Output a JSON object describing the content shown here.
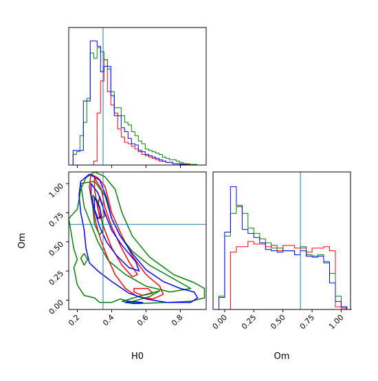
{
  "chart_data": [
    {
      "type": "histogram",
      "panel": "H0 marginal",
      "xlim": [
        0.15,
        0.95
      ],
      "bins": [
        0.165,
        0.185,
        0.205,
        0.225,
        0.245,
        0.265,
        0.285,
        0.305,
        0.325,
        0.345,
        0.365,
        0.385,
        0.405,
        0.425,
        0.445,
        0.465,
        0.485,
        0.505,
        0.525,
        0.545,
        0.565,
        0.585,
        0.605,
        0.625,
        0.645,
        0.665,
        0.685,
        0.705,
        0.725,
        0.745,
        0.765,
        0.785,
        0.805,
        0.825,
        0.845,
        0.865,
        0.885,
        0.905
      ],
      "truth_x": 0.35,
      "series": [
        {
          "color": "#ff0000",
          "values": [
            0,
            0,
            0,
            0,
            0,
            0,
            0,
            0.03,
            0.39,
            0.63,
            0.79,
            0.55,
            0.45,
            0.39,
            0.27,
            0.21,
            0.17,
            0.16,
            0.14,
            0.12,
            0.1,
            0.08,
            0.07,
            0.06,
            0.05,
            0.04,
            0.03,
            0.03,
            0.02,
            0.02,
            0.01,
            0.01,
            0.01,
            0.01,
            0.005,
            0.005,
            0,
            0
          ]
        },
        {
          "color": "#008000",
          "values": [
            0,
            0.08,
            0.1,
            0.22,
            0.32,
            0.5,
            0.84,
            0.8,
            0.88,
            0.85,
            0.79,
            0.72,
            0.55,
            0.43,
            0.43,
            0.37,
            0.32,
            0.3,
            0.25,
            0.22,
            0.18,
            0.16,
            0.12,
            0.11,
            0.1,
            0.09,
            0.08,
            0.06,
            0.05,
            0.04,
            0.04,
            0.03,
            0.02,
            0.01,
            0.01,
            0.005,
            0.005,
            0
          ]
        },
        {
          "color": "#0000ff",
          "values": [
            0,
            0.11,
            0.11,
            0.11,
            0.48,
            0.48,
            0.93,
            0.93,
            0.89,
            0.7,
            0.74,
            0.74,
            0.52,
            0.37,
            0.37,
            0.28,
            0.25,
            0.2,
            0.16,
            0.15,
            0.11,
            0.1,
            0.08,
            0.07,
            0.06,
            0.05,
            0.04,
            0.03,
            0.02,
            0.02,
            0.01,
            0.01,
            0.005,
            0.005,
            0,
            0,
            0,
            0
          ]
        }
      ]
    },
    {
      "type": "contour",
      "panel": "Om vs H0",
      "xlabel": "H0",
      "ylabel": "Om",
      "xlim": [
        0.15,
        0.95
      ],
      "ylim": [
        -0.08,
        1.1
      ],
      "xticks": [
        "0.2",
        "0.4",
        "0.6",
        "0.8"
      ],
      "yticks": [
        "0.00",
        "0.25",
        "0.50",
        "0.75",
        "1.00"
      ],
      "truth_x": 0.35,
      "truth_y": 0.65,
      "series": [
        {
          "color": "#ff0000",
          "contours": [
            [
              [
                0.28,
                1.08
              ],
              [
                0.32,
                1.05
              ],
              [
                0.36,
                0.98
              ],
              [
                0.38,
                0.87
              ],
              [
                0.4,
                0.75
              ],
              [
                0.46,
                0.55
              ],
              [
                0.52,
                0.38
              ],
              [
                0.6,
                0.22
              ],
              [
                0.68,
                0.12
              ],
              [
                0.7,
                0.05
              ],
              [
                0.64,
                0.01
              ],
              [
                0.55,
                0.03
              ],
              [
                0.48,
                0.1
              ],
              [
                0.42,
                0.22
              ],
              [
                0.38,
                0.35
              ],
              [
                0.34,
                0.5
              ],
              [
                0.31,
                0.65
              ],
              [
                0.29,
                0.8
              ],
              [
                0.27,
                0.97
              ],
              [
                0.28,
                1.08
              ]
            ],
            [
              [
                0.3,
                1.05
              ],
              [
                0.34,
                0.95
              ],
              [
                0.36,
                0.8
              ],
              [
                0.4,
                0.63
              ],
              [
                0.45,
                0.47
              ],
              [
                0.5,
                0.33
              ],
              [
                0.55,
                0.22
              ],
              [
                0.52,
                0.2
              ],
              [
                0.46,
                0.3
              ],
              [
                0.4,
                0.45
              ],
              [
                0.36,
                0.6
              ],
              [
                0.32,
                0.78
              ],
              [
                0.3,
                0.95
              ],
              [
                0.3,
                1.05
              ]
            ],
            [
              [
                0.33,
                0.89
              ],
              [
                0.35,
                0.8
              ],
              [
                0.36,
                0.72
              ],
              [
                0.33,
                0.7
              ],
              [
                0.32,
                0.8
              ],
              [
                0.33,
                0.89
              ]
            ],
            [
              [
                0.53,
                0.1
              ],
              [
                0.61,
                0.1
              ],
              [
                0.64,
                0.06
              ],
              [
                0.58,
                0.04
              ],
              [
                0.53,
                0.07
              ],
              [
                0.53,
                0.1
              ]
            ]
          ]
        },
        {
          "color": "#008000",
          "contours": [
            [
              [
                0.15,
                0.7
              ],
              [
                0.2,
                0.78
              ],
              [
                0.22,
                0.95
              ],
              [
                0.25,
                1.05
              ],
              [
                0.3,
                1.1
              ],
              [
                0.36,
                1.06
              ],
              [
                0.42,
                0.95
              ],
              [
                0.46,
                0.75
              ],
              [
                0.52,
                0.55
              ],
              [
                0.62,
                0.37
              ],
              [
                0.76,
                0.22
              ],
              [
                0.88,
                0.15
              ],
              [
                0.94,
                0.1
              ],
              [
                0.94,
                0.02
              ],
              [
                0.86,
                -0.01
              ],
              [
                0.72,
                -0.02
              ],
              [
                0.55,
                -0.03
              ],
              [
                0.45,
                0.01
              ],
              [
                0.4,
                -0.02
              ],
              [
                0.33,
                -0.02
              ],
              [
                0.3,
                0.02
              ],
              [
                0.24,
                0.04
              ],
              [
                0.2,
                0.13
              ],
              [
                0.18,
                0.28
              ],
              [
                0.2,
                0.35
              ],
              [
                0.18,
                0.44
              ],
              [
                0.15,
                0.7
              ]
            ],
            [
              [
                0.22,
                1.0
              ],
              [
                0.3,
                1.02
              ],
              [
                0.36,
                0.9
              ],
              [
                0.4,
                0.7
              ],
              [
                0.45,
                0.55
              ],
              [
                0.52,
                0.42
              ],
              [
                0.62,
                0.3
              ],
              [
                0.74,
                0.2
              ],
              [
                0.86,
                0.1
              ],
              [
                0.74,
                0.07
              ],
              [
                0.6,
                0.12
              ],
              [
                0.48,
                0.22
              ],
              [
                0.38,
                0.34
              ],
              [
                0.32,
                0.5
              ],
              [
                0.28,
                0.65
              ],
              [
                0.24,
                0.8
              ],
              [
                0.22,
                1.0
              ]
            ],
            [
              [
                0.29,
                0.9
              ],
              [
                0.32,
                0.85
              ],
              [
                0.34,
                0.72
              ],
              [
                0.35,
                0.6
              ],
              [
                0.33,
                0.56
              ],
              [
                0.3,
                0.65
              ],
              [
                0.29,
                0.8
              ],
              [
                0.29,
                0.9
              ]
            ],
            [
              [
                0.24,
                0.4
              ],
              [
                0.26,
                0.35
              ],
              [
                0.24,
                0.3
              ],
              [
                0.22,
                0.36
              ],
              [
                0.24,
                0.4
              ]
            ],
            [
              [
                0.46,
                -0.01
              ],
              [
                0.6,
                0.05
              ],
              [
                0.68,
                0.08
              ],
              [
                0.62,
                0.03
              ],
              [
                0.5,
                -0.02
              ],
              [
                0.46,
                -0.01
              ]
            ]
          ]
        },
        {
          "color": "#0000ff",
          "contours": [
            [
              [
                0.22,
                1.02
              ],
              [
                0.27,
                1.08
              ],
              [
                0.33,
                1.03
              ],
              [
                0.37,
                0.88
              ],
              [
                0.4,
                0.7
              ],
              [
                0.45,
                0.55
              ],
              [
                0.52,
                0.4
              ],
              [
                0.6,
                0.26
              ],
              [
                0.7,
                0.16
              ],
              [
                0.8,
                0.1
              ],
              [
                0.88,
                0.07
              ],
              [
                0.9,
                0.02
              ],
              [
                0.86,
                -0.02
              ],
              [
                0.72,
                -0.02
              ],
              [
                0.6,
                0.01
              ],
              [
                0.5,
                0.06
              ],
              [
                0.4,
                0.16
              ],
              [
                0.32,
                0.25
              ],
              [
                0.27,
                0.32
              ],
              [
                0.25,
                0.45
              ],
              [
                0.24,
                0.6
              ],
              [
                0.22,
                0.75
              ],
              [
                0.21,
                0.9
              ],
              [
                0.22,
                1.02
              ]
            ],
            [
              [
                0.28,
                1.0
              ],
              [
                0.32,
                0.92
              ],
              [
                0.36,
                0.75
              ],
              [
                0.4,
                0.6
              ],
              [
                0.46,
                0.47
              ],
              [
                0.54,
                0.33
              ],
              [
                0.56,
                0.25
              ],
              [
                0.5,
                0.28
              ],
              [
                0.43,
                0.38
              ],
              [
                0.37,
                0.5
              ],
              [
                0.33,
                0.63
              ],
              [
                0.3,
                0.77
              ],
              [
                0.28,
                0.9
              ],
              [
                0.28,
                1.0
              ]
            ],
            [
              [
                0.3,
                0.88
              ],
              [
                0.33,
                0.8
              ],
              [
                0.34,
                0.72
              ],
              [
                0.32,
                0.7
              ],
              [
                0.3,
                0.78
              ],
              [
                0.3,
                0.88
              ]
            ],
            [
              [
                0.5,
                -0.01
              ],
              [
                0.58,
                -0.02
              ],
              [
                0.53,
                -0.03
              ],
              [
                0.48,
                -0.02
              ],
              [
                0.5,
                -0.01
              ]
            ]
          ]
        }
      ]
    },
    {
      "type": "histogram",
      "panel": "Om marginal",
      "xlabel": "Om",
      "xlim": [
        -0.1,
        1.08
      ],
      "xticks": [
        "0.00",
        "0.25",
        "0.50",
        "0.75",
        "1.00"
      ],
      "bins": [
        -0.075,
        -0.025,
        0.025,
        0.075,
        0.125,
        0.175,
        0.225,
        0.275,
        0.325,
        0.375,
        0.425,
        0.475,
        0.525,
        0.575,
        0.625,
        0.675,
        0.725,
        0.775,
        0.825,
        0.875,
        0.925,
        0.975,
        1.025,
        1.065
      ],
      "truth_x": 0.65,
      "series": [
        {
          "color": "#ff0000",
          "values": [
            0,
            0,
            0,
            0.43,
            0.47,
            0.47,
            0.51,
            0.49,
            0.49,
            0.47,
            0.48,
            0.44,
            0.48,
            0.48,
            0.46,
            0.46,
            0.43,
            0.46,
            0.46,
            0.47,
            0.44,
            0.02,
            0.01,
            0
          ]
        },
        {
          "color": "#008000",
          "values": [
            0,
            0.1,
            0.55,
            0.72,
            0.77,
            0.72,
            0.61,
            0.57,
            0.53,
            0.5,
            0.46,
            0.46,
            0.44,
            0.44,
            0.41,
            0.47,
            0.41,
            0.39,
            0.41,
            0.36,
            0.27,
            0.1,
            0.02,
            0
          ]
        },
        {
          "color": "#0000ff",
          "values": [
            0,
            0.09,
            0.58,
            0.92,
            0.78,
            0.6,
            0.57,
            0.54,
            0.5,
            0.45,
            0.44,
            0.43,
            0.44,
            0.44,
            0.41,
            0.44,
            0.4,
            0.4,
            0.4,
            0.35,
            0.2,
            0.06,
            0.02,
            0
          ]
        }
      ]
    }
  ]
}
